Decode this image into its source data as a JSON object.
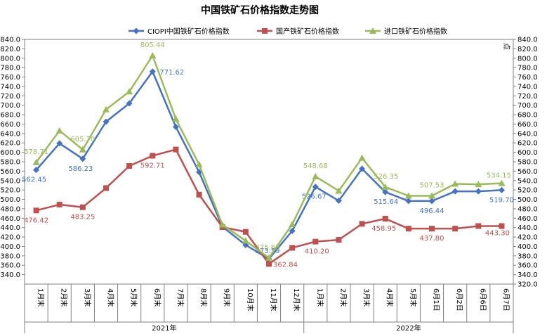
{
  "chart_data": {
    "type": "line",
    "title": "中国铁矿石价格指数走势图",
    "ylabel_right": "点",
    "ylim": [
      320,
      840
    ],
    "ytick_step": 20,
    "left_axis_ticks": [
      340,
      360,
      380,
      400,
      420,
      440,
      460,
      480,
      500,
      520,
      540,
      560,
      580,
      600,
      620,
      640,
      660,
      680,
      700,
      720,
      740,
      760,
      780,
      800,
      820,
      840
    ],
    "right_axis_ticks": [
      320,
      340,
      360,
      380,
      400,
      420,
      440,
      460,
      480,
      500,
      520,
      540,
      560,
      580,
      600,
      620,
      640,
      660,
      680,
      700,
      720,
      740,
      760,
      780,
      800,
      820,
      840
    ],
    "categories": [
      "1月末",
      "2月末",
      "3月末",
      "4月末",
      "5月末",
      "6月末",
      "7月末",
      "8月末",
      "9月末",
      "10月末",
      "11月末",
      "12月末",
      "1月末",
      "2月末",
      "3月末",
      "4月末",
      "5月末",
      "6月1日",
      "6月2日",
      "6月6日",
      "6月7日"
    ],
    "year_groups": [
      {
        "label": "2021年",
        "start": 0,
        "end": 11
      },
      {
        "label": "2022年",
        "start": 12,
        "end": 20
      }
    ],
    "legend_position": "top",
    "colors": {
      "ciopi": "#4472C4",
      "domestic": "#C0504D",
      "imported": "#9BBB59"
    },
    "series": [
      {
        "key": "ciopi",
        "name": "CIOPI中国铁矿石价格指数",
        "marker": "diamond",
        "values": [
          562.45,
          619.0,
          586.23,
          665.0,
          704.0,
          771.62,
          654.0,
          558.0,
          442.0,
          403.0,
          373.59,
          433.0,
          526.67,
          497.0,
          565.0,
          515.64,
          496.44,
          496.44,
          517.0,
          517.0,
          519.7
        ],
        "labels": [
          {
            "i": 0,
            "text": "562.45"
          },
          {
            "i": 2,
            "text": "586.23"
          },
          {
            "i": 5,
            "text": "771.62"
          },
          {
            "i": 10,
            "text": "373.59"
          },
          {
            "i": 12,
            "text": "526.67"
          },
          {
            "i": 15,
            "text": "515.64"
          },
          {
            "i": 17,
            "text": "496.44"
          },
          {
            "i": 20,
            "text": "519.70"
          }
        ]
      },
      {
        "key": "domestic",
        "name": "国产铁矿石价格指数",
        "marker": "square",
        "values": [
          476.42,
          489.0,
          483.25,
          524.0,
          571.0,
          592.71,
          606.0,
          510.0,
          441.0,
          431.0,
          362.84,
          397.0,
          410.2,
          414.0,
          448.0,
          458.95,
          437.8,
          437.8,
          437.8,
          443.3,
          443.3
        ],
        "labels": [
          {
            "i": 0,
            "text": "476.42"
          },
          {
            "i": 2,
            "text": "483.25"
          },
          {
            "i": 5,
            "text": "592.71"
          },
          {
            "i": 10,
            "text": "362.84"
          },
          {
            "i": 12,
            "text": "410.20"
          },
          {
            "i": 15,
            "text": "458.95"
          },
          {
            "i": 17,
            "text": "437.80"
          },
          {
            "i": 20,
            "text": "443.30"
          }
        ]
      },
      {
        "key": "imported",
        "name": "进口铁矿石价格指数",
        "marker": "triangle",
        "values": [
          578.71,
          646.0,
          605.7,
          691.0,
          729.0,
          805.44,
          671.0,
          574.0,
          446.0,
          412.0,
          375.63,
          447.0,
          548.68,
          518.0,
          588.0,
          526.35,
          507.53,
          507.53,
          533.0,
          532.0,
          534.15
        ],
        "labels": [
          {
            "i": 0,
            "text": "578.71"
          },
          {
            "i": 2,
            "text": "605.70"
          },
          {
            "i": 5,
            "text": "805.44"
          },
          {
            "i": 10,
            "text": "375.63"
          },
          {
            "i": 12,
            "text": "548.68"
          },
          {
            "i": 15,
            "text": "526.35"
          },
          {
            "i": 17,
            "text": "507.53"
          },
          {
            "i": 20,
            "text": "534.15"
          }
        ]
      }
    ]
  }
}
